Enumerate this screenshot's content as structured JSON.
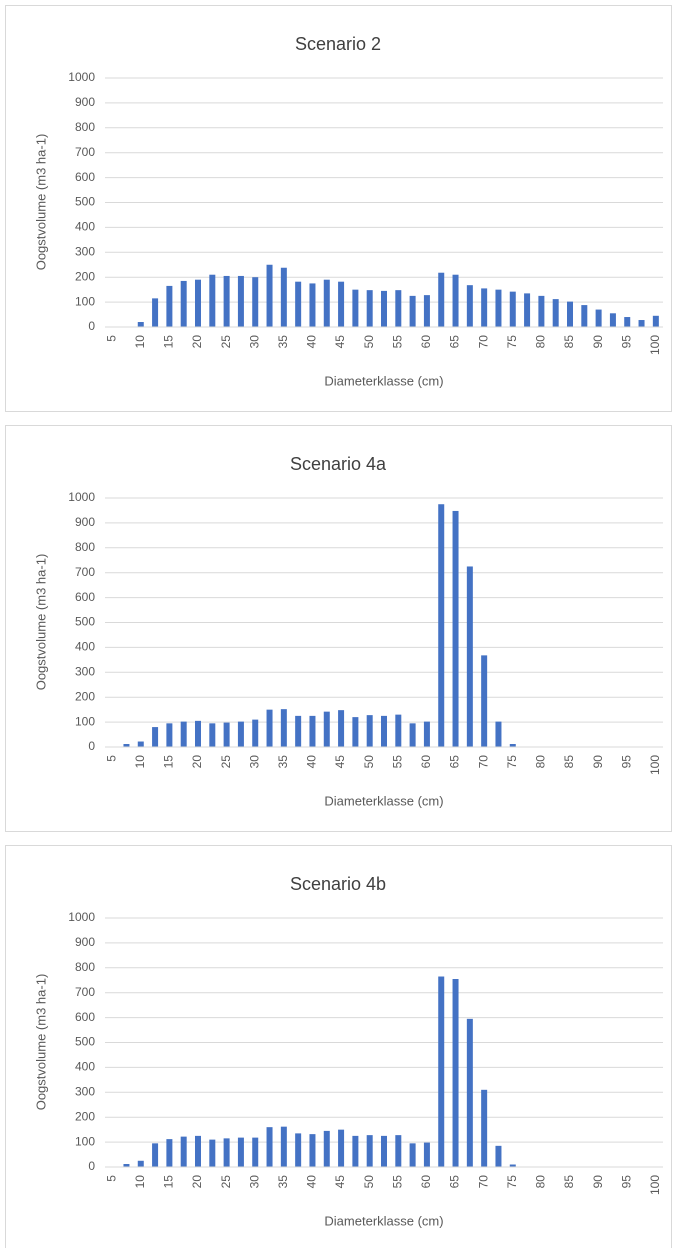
{
  "chart_data": [
    {
      "type": "bar",
      "title": "Scenario 2",
      "x_label": "Diameterklasse (cm)",
      "y_label": "Oogstvolume (m3 ha-1)",
      "color": "#4472c4",
      "grid": true,
      "categories": [
        "5",
        null,
        "10",
        null,
        "15",
        null,
        "20",
        null,
        "25",
        null,
        "30",
        null,
        "35",
        null,
        "40",
        null,
        "45",
        null,
        "50",
        null,
        "55",
        null,
        "60",
        null,
        "65",
        null,
        "70",
        null,
        "75",
        null,
        "80",
        null,
        "85",
        null,
        "90",
        null,
        "95",
        null,
        "100"
      ],
      "values": [
        0,
        0,
        20,
        115,
        165,
        185,
        190,
        210,
        205,
        205,
        200,
        250,
        238,
        182,
        175,
        190,
        182,
        150,
        148,
        145,
        148,
        125,
        128,
        218,
        210,
        168,
        155,
        150,
        142,
        135,
        125,
        112,
        102,
        88,
        70,
        55,
        40,
        28,
        45
      ],
      "ylim": [
        0,
        1000
      ],
      "yticks": [
        0,
        100,
        200,
        300,
        400,
        500,
        600,
        700,
        800,
        900,
        1000
      ]
    },
    {
      "type": "bar",
      "title": "Scenario 4a",
      "x_label": "Diameterklasse (cm)",
      "y_label": "Oogstvolume (m3 ha-1)",
      "color": "#4472c4",
      "grid": true,
      "categories": [
        "5",
        null,
        "10",
        null,
        "15",
        null,
        "20",
        null,
        "25",
        null,
        "30",
        null,
        "35",
        null,
        "40",
        null,
        "45",
        null,
        "50",
        null,
        "55",
        null,
        "60",
        null,
        "65",
        null,
        "70",
        null,
        "75",
        null,
        "80",
        null,
        "85",
        null,
        "90",
        null,
        "95",
        null,
        "100"
      ],
      "values": [
        0,
        12,
        22,
        80,
        95,
        102,
        105,
        95,
        98,
        102,
        110,
        150,
        152,
        125,
        125,
        142,
        148,
        120,
        128,
        125,
        130,
        95,
        102,
        975,
        948,
        725,
        368,
        102,
        12,
        0,
        0,
        0,
        0,
        0,
        0,
        0,
        0,
        0,
        0
      ],
      "ylim": [
        0,
        1000
      ],
      "yticks": [
        0,
        100,
        200,
        300,
        400,
        500,
        600,
        700,
        800,
        900,
        1000
      ]
    },
    {
      "type": "bar",
      "title": "Scenario 4b",
      "x_label": "Diameterklasse (cm)",
      "y_label": "Oogstvolume (m3 ha-1)",
      "color": "#4472c4",
      "grid": true,
      "categories": [
        "5",
        null,
        "10",
        null,
        "15",
        null,
        "20",
        null,
        "25",
        null,
        "30",
        null,
        "35",
        null,
        "40",
        null,
        "45",
        null,
        "50",
        null,
        "55",
        null,
        "60",
        null,
        "65",
        null,
        "70",
        null,
        "75",
        null,
        "80",
        null,
        "85",
        null,
        "90",
        null,
        "95",
        null,
        "100"
      ],
      "values": [
        0,
        12,
        25,
        95,
        112,
        122,
        125,
        110,
        115,
        118,
        118,
        160,
        162,
        135,
        132,
        145,
        150,
        125,
        128,
        125,
        128,
        95,
        98,
        765,
        755,
        595,
        310,
        85,
        10,
        0,
        0,
        0,
        0,
        0,
        0,
        0,
        0,
        0,
        0
      ],
      "ylim": [
        0,
        1000
      ],
      "yticks": [
        0,
        100,
        200,
        300,
        400,
        500,
        600,
        700,
        800,
        900,
        1000
      ]
    }
  ]
}
